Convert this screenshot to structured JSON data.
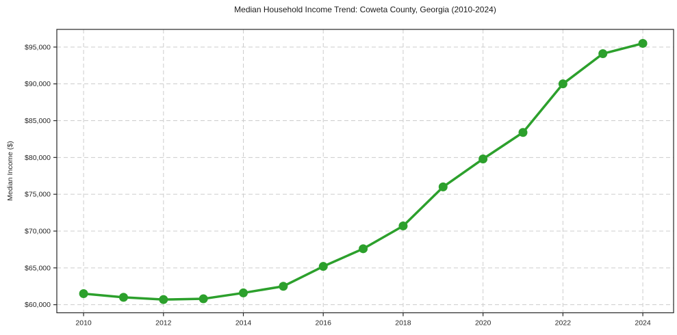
{
  "chart_data": {
    "type": "line",
    "title": "Median Household Income Trend: Coweta County, Georgia (2010-2024)",
    "xlabel": "",
    "ylabel": "Median Income ($)",
    "x": [
      2010,
      2011,
      2012,
      2013,
      2014,
      2015,
      2016,
      2017,
      2018,
      2019,
      2020,
      2021,
      2022,
      2023,
      2024
    ],
    "series": [
      {
        "name": "Median Household Income",
        "values": [
          61500,
          61000,
          60700,
          60800,
          61600,
          62500,
          65200,
          67600,
          70700,
          76000,
          79800,
          83400,
          90000,
          94100,
          95500
        ],
        "color": "#2ca02c"
      }
    ],
    "xticks": [
      2010,
      2012,
      2014,
      2016,
      2018,
      2020,
      2022,
      2024
    ],
    "xtick_labels": [
      "2010",
      "2012",
      "2014",
      "2016",
      "2018",
      "2020",
      "2022",
      "2024"
    ],
    "yticks": [
      60000,
      65000,
      70000,
      75000,
      80000,
      85000,
      90000,
      95000
    ],
    "ytick_labels": [
      "$60,000",
      "$65,000",
      "$70,000",
      "$75,000",
      "$80,000",
      "$85,000",
      "$90,000",
      "$95,000"
    ],
    "xlim": [
      2009.33,
      2024.77
    ],
    "ylim": [
      58900,
      97400
    ],
    "grid": true,
    "grid_color": "#cccccc",
    "axis_color": "#262626",
    "background": "#ffffff",
    "legend_position": "none",
    "marker": "circle",
    "marker_radius": 6.5,
    "line_width": 3.5
  }
}
